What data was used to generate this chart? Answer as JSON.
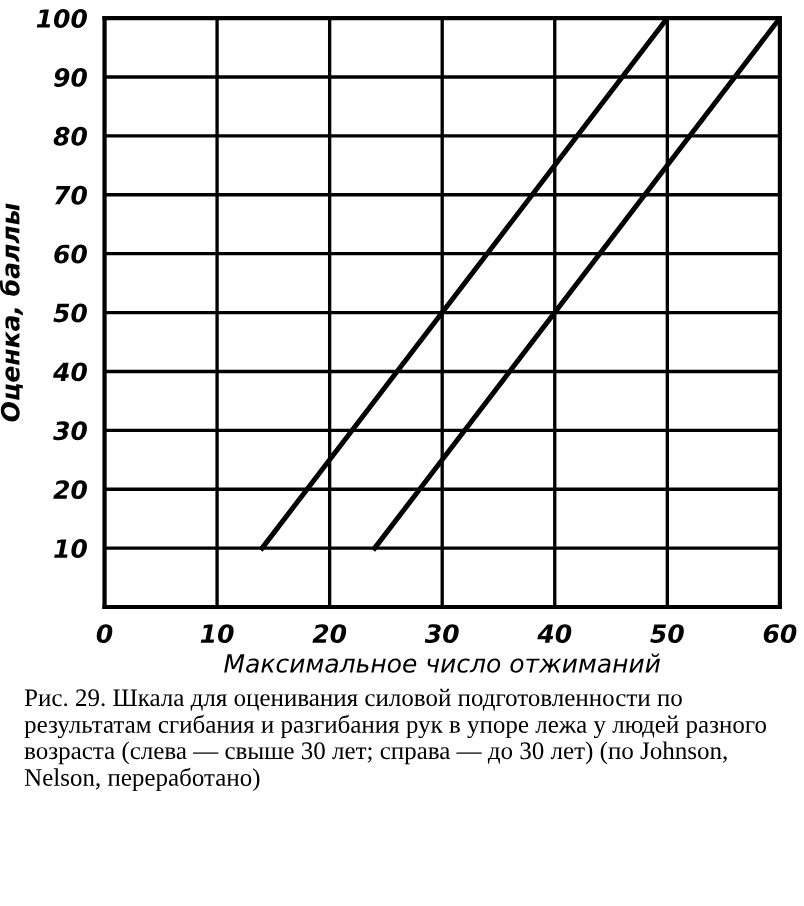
{
  "chart_data": {
    "type": "line",
    "xlabel": "Максимальное число отжиманий",
    "ylabel": "Оценка, баллы",
    "series": [
      {
        "color": "#000000",
        "x": [
          14,
          20,
          30,
          40,
          50
        ],
        "values": [
          10,
          25,
          50,
          75,
          100
        ]
      },
      {
        "color": "#000000",
        "x": [
          24,
          30,
          40,
          50,
          60
        ],
        "values": [
          10,
          25,
          50,
          75,
          100
        ]
      }
    ],
    "xlim": [
      0,
      60
    ],
    "ylim": [
      0,
      100
    ],
    "xticks": [
      0,
      10,
      20,
      30,
      40,
      50,
      60
    ],
    "yticks": [
      10,
      20,
      30,
      40,
      50,
      60,
      70,
      80,
      90,
      100
    ],
    "grid": true,
    "marker": "none",
    "line_style": "solid",
    "annotations": [
      "Рис. 29. Шкала для оценивания силовой подготовленности по результатам сгибания и разгибания рук в упоре лежа у людей разного возраста (слева — свыше 30 лет; справа — до 30 лет) (по Johnson, Nelson, переработано)"
    ]
  }
}
